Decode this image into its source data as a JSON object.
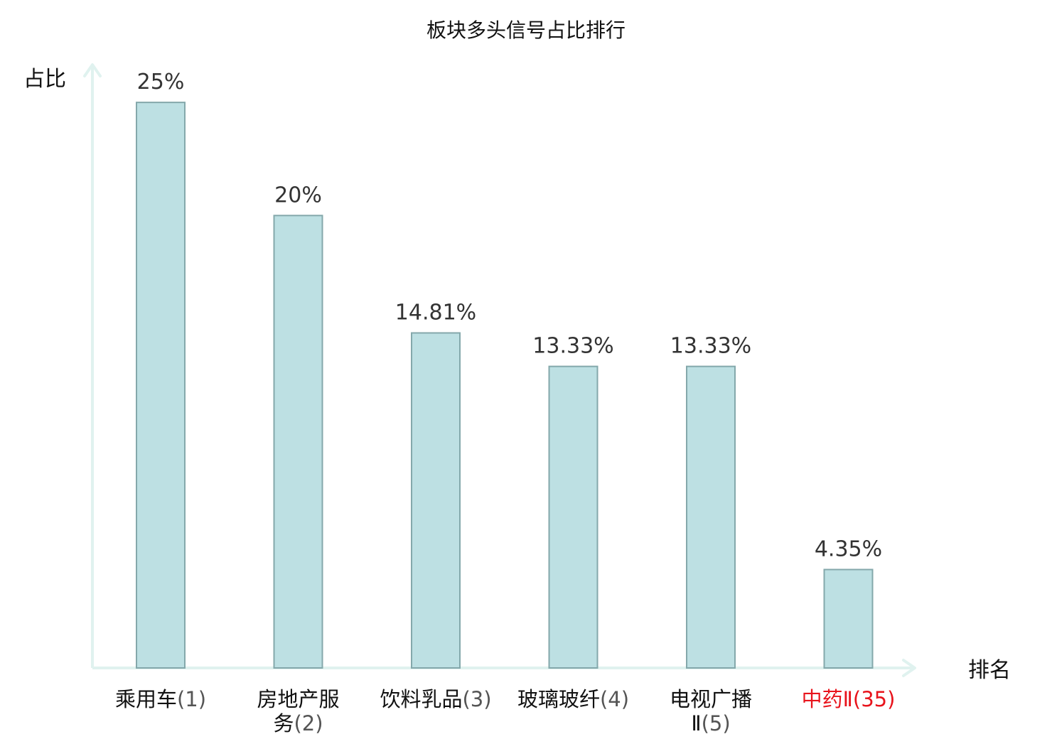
{
  "chart_data": {
    "type": "bar",
    "title": "板块多头信号占比排行",
    "ylabel": "占比",
    "xlabel": "排名",
    "ylim": [
      0,
      26.7
    ],
    "categories": [
      {
        "name": "乘用车",
        "rank": "(1)",
        "lines": [
          {
            "name": "乘用车",
            "rank": "(1)"
          }
        ]
      },
      {
        "name": "房地产服务",
        "rank": "(2)",
        "lines": [
          {
            "name": "房地产服",
            "rank": ""
          },
          {
            "name": "务",
            "rank": "(2)"
          }
        ]
      },
      {
        "name": "饮料乳品",
        "rank": "(3)",
        "lines": [
          {
            "name": "饮料乳品",
            "rank": "(3)"
          }
        ]
      },
      {
        "name": "玻璃玻纤",
        "rank": "(4)",
        "lines": [
          {
            "name": "玻璃玻纤",
            "rank": "(4)"
          }
        ]
      },
      {
        "name": "电视广播Ⅱ",
        "rank": "(5)",
        "lines": [
          {
            "name": "电视广播",
            "rank": ""
          },
          {
            "name": "Ⅱ",
            "rank": "(5)"
          }
        ]
      },
      {
        "name": "中药Ⅱ",
        "rank": "(35)",
        "lines": [
          {
            "name": "中药Ⅱ",
            "rank": "(35)"
          }
        ]
      }
    ],
    "values": [
      25,
      20,
      14.81,
      13.33,
      13.33,
      4.35
    ],
    "value_labels": [
      "25%",
      "20%",
      "14.81%",
      "13.33%",
      "13.33%",
      "4.35%"
    ],
    "highlight_index": 5,
    "grid": false,
    "legend": "none"
  },
  "colors": {
    "bar_fill": "#bde0e3",
    "bar_stroke": "#84a8ab",
    "axis": "#e0f2ef",
    "category_text": "#111111",
    "rank_text": "#555555",
    "highlight_text": "#e8141c"
  }
}
